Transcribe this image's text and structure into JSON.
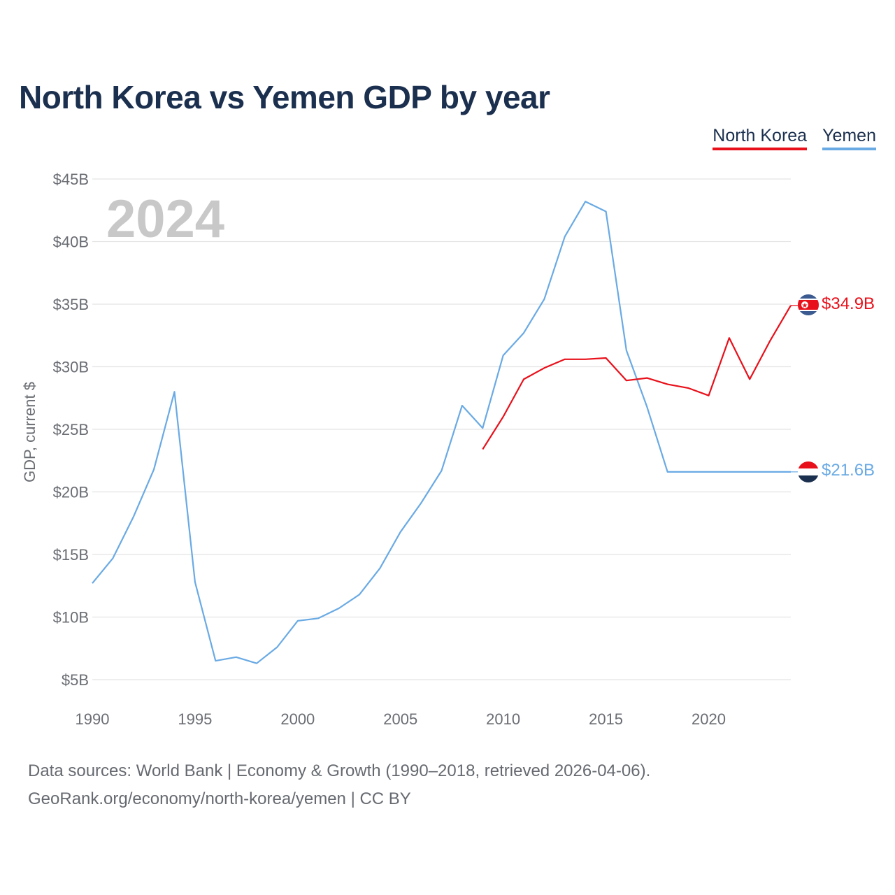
{
  "title": "North Korea vs Yemen GDP by year",
  "year_watermark": "2024",
  "legend": [
    {
      "label": "North Korea",
      "color": "#e8101a"
    },
    {
      "label": "Yemen",
      "color": "#6aaae4"
    }
  ],
  "end_labels": {
    "north_korea": "$34.9B",
    "yemen": "$21.6B"
  },
  "footer": {
    "line1": "Data sources: World Bank | Economy & Growth (1990–2018, retrieved 2026-04-06).",
    "line2": "GeoRank.org/economy/north-korea/yemen | CC BY"
  },
  "chart_data": {
    "type": "line",
    "title": "North Korea vs Yemen GDP by year",
    "xlabel": "",
    "ylabel": "GDP, current $",
    "xlim": [
      1990,
      2024
    ],
    "ylim": [
      5,
      45
    ],
    "x_ticks": [
      1990,
      1995,
      2000,
      2005,
      2010,
      2015,
      2020
    ],
    "x_tick_labels": [
      "1990",
      "1995",
      "2000",
      "2005",
      "2010",
      "2015",
      "2020"
    ],
    "y_ticks": [
      5,
      10,
      15,
      20,
      25,
      30,
      35,
      40,
      45
    ],
    "y_tick_labels": [
      "$5B",
      "$10B",
      "$15B",
      "$20B",
      "$25B",
      "$30B",
      "$35B",
      "$40B",
      "$45B"
    ],
    "grid": true,
    "legend_position": "top-right",
    "series": [
      {
        "name": "North Korea",
        "color": "#e8101a",
        "x": [
          2009,
          2010,
          2011,
          2012,
          2013,
          2014,
          2015,
          2016,
          2017,
          2018,
          2019,
          2020,
          2021,
          2022,
          2023,
          2024
        ],
        "values": [
          23.4,
          26.0,
          29.0,
          29.9,
          30.6,
          30.6,
          30.7,
          28.9,
          29.1,
          28.6,
          28.3,
          27.7,
          32.3,
          29.0,
          32.1,
          34.9
        ]
      },
      {
        "name": "Yemen",
        "color": "#6aaae4",
        "x": [
          1990,
          1991,
          1992,
          1993,
          1994,
          1995,
          1996,
          1997,
          1998,
          1999,
          2000,
          2001,
          2002,
          2003,
          2004,
          2005,
          2006,
          2007,
          2008,
          2009,
          2010,
          2011,
          2012,
          2013,
          2014,
          2015,
          2016,
          2017,
          2018,
          2019,
          2020,
          2021,
          2022,
          2023,
          2024
        ],
        "values": [
          12.7,
          14.7,
          18.0,
          21.8,
          28.0,
          12.8,
          6.5,
          6.8,
          6.3,
          7.6,
          9.7,
          9.9,
          10.7,
          11.8,
          13.9,
          16.8,
          19.1,
          21.7,
          26.9,
          25.1,
          30.9,
          32.7,
          35.4,
          40.4,
          43.2,
          42.4,
          31.3,
          26.8,
          21.6,
          21.6,
          21.6,
          21.6,
          21.6,
          21.6,
          21.6
        ]
      }
    ]
  }
}
